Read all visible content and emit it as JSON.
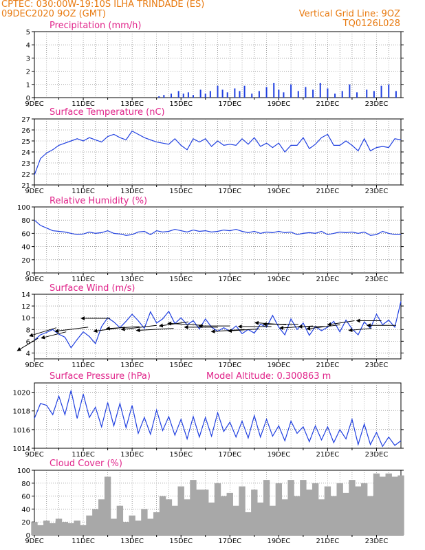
{
  "header": {
    "line1_left": "CPTEC:   030:00W-19:10S  ILHA TRINDADE (ES)",
    "line2_left": "09DEC2020 9OZ (GMT)",
    "line1_right": "Vertical Grid Line: 9OZ",
    "line2_right": "TQ0126L028"
  },
  "colors": {
    "accent_title": "#e0248a",
    "header": "#e87a10",
    "series": "#1f3fe0",
    "bars_gray": "#a8a8a8",
    "wind_arrows": "#000000"
  },
  "chart_data": [
    {
      "id": "precip",
      "type": "bar",
      "title": "Precipitation (mm/h)",
      "ylim": [
        0,
        5
      ],
      "yticks": [
        0,
        1,
        2,
        3,
        4,
        5
      ],
      "x_labels": [
        "9DEC",
        "11DEC",
        "13DEC",
        "15DEC",
        "17DEC",
        "19DEC",
        "21DEC",
        "23DEC"
      ],
      "x_range_days": [
        9,
        24
      ],
      "bars": [
        [
          14.1,
          0.1
        ],
        [
          14.3,
          0.2
        ],
        [
          14.6,
          0.3
        ],
        [
          14.9,
          0.5
        ],
        [
          15.1,
          0.3
        ],
        [
          15.3,
          0.4
        ],
        [
          15.5,
          0.2
        ],
        [
          15.8,
          0.6
        ],
        [
          16.0,
          0.3
        ],
        [
          16.2,
          0.5
        ],
        [
          16.5,
          0.9
        ],
        [
          16.7,
          0.6
        ],
        [
          16.9,
          0.4
        ],
        [
          17.2,
          0.7
        ],
        [
          17.4,
          0.5
        ],
        [
          17.6,
          0.9
        ],
        [
          17.9,
          0.3
        ],
        [
          18.2,
          0.5
        ],
        [
          18.5,
          0.8
        ],
        [
          18.8,
          1.1
        ],
        [
          19.0,
          0.6
        ],
        [
          19.2,
          0.4
        ],
        [
          19.5,
          1.0
        ],
        [
          19.8,
          0.5
        ],
        [
          20.1,
          0.8
        ],
        [
          20.4,
          0.6
        ],
        [
          20.7,
          1.1
        ],
        [
          21.0,
          0.7
        ],
        [
          21.3,
          0.3
        ],
        [
          21.6,
          0.5
        ],
        [
          21.9,
          1.0
        ],
        [
          22.2,
          0.4
        ],
        [
          22.6,
          0.6
        ],
        [
          22.9,
          0.5
        ],
        [
          23.2,
          0.9
        ],
        [
          23.5,
          1.0
        ],
        [
          23.8,
          0.5
        ]
      ]
    },
    {
      "id": "temp",
      "type": "line",
      "title": "Surface Temperature (nC)",
      "ylim": [
        21,
        27
      ],
      "yticks": [
        21,
        22,
        23,
        24,
        25,
        26,
        27
      ],
      "x_labels": [
        "9DEC",
        "11DEC",
        "13DEC",
        "15DEC",
        "17DEC",
        "19DEC",
        "21DEC",
        "23DEC"
      ],
      "x_range_days": [
        9,
        24
      ],
      "x": [
        9.0,
        9.25,
        9.5,
        9.75,
        10.0,
        10.25,
        10.5,
        10.75,
        11.0,
        11.25,
        11.5,
        11.75,
        12.0,
        12.25,
        12.5,
        12.75,
        13.0,
        13.25,
        13.5,
        13.75,
        14.0,
        14.25,
        14.5,
        14.75,
        15.0,
        15.25,
        15.5,
        15.75,
        16.0,
        16.25,
        16.5,
        16.75,
        17.0,
        17.25,
        17.5,
        17.75,
        18.0,
        18.25,
        18.5,
        18.75,
        19.0,
        19.25,
        19.5,
        19.75,
        20.0,
        20.25,
        20.5,
        20.75,
        21.0,
        21.25,
        21.5,
        21.75,
        22.0,
        22.25,
        22.5,
        22.75,
        23.0,
        23.25,
        23.5,
        23.75,
        24.0
      ],
      "y": [
        21.9,
        23.4,
        23.9,
        24.2,
        24.6,
        24.8,
        25.0,
        25.2,
        25.0,
        25.3,
        25.1,
        24.9,
        25.4,
        25.6,
        25.3,
        25.1,
        25.9,
        25.6,
        25.3,
        25.1,
        24.9,
        24.8,
        24.7,
        25.2,
        24.6,
        24.2,
        25.2,
        24.9,
        25.2,
        24.5,
        25.0,
        24.6,
        24.7,
        24.6,
        25.2,
        24.7,
        25.3,
        24.5,
        24.8,
        24.4,
        24.8,
        24.0,
        24.6,
        24.6,
        25.3,
        24.3,
        24.7,
        25.3,
        25.6,
        24.6,
        24.6,
        25.0,
        24.6,
        24.1,
        25.2,
        24.1,
        24.4,
        24.5,
        24.4,
        25.2,
        25.1
      ]
    },
    {
      "id": "rh",
      "type": "line",
      "title": "Relative Humidity (%)",
      "ylim": [
        0,
        100
      ],
      "yticks": [
        0,
        20,
        40,
        60,
        80,
        100
      ],
      "x_labels": [
        "9DEC",
        "11DEC",
        "13DEC",
        "15DEC",
        "17DEC",
        "19DEC",
        "21DEC",
        "23DEC"
      ],
      "x_range_days": [
        9,
        24
      ],
      "x": [
        9.0,
        9.25,
        9.5,
        9.75,
        10.0,
        10.25,
        10.5,
        10.75,
        11.0,
        11.25,
        11.5,
        11.75,
        12.0,
        12.25,
        12.5,
        12.75,
        13.0,
        13.25,
        13.5,
        13.75,
        14.0,
        14.25,
        14.5,
        14.75,
        15.0,
        15.25,
        15.5,
        15.75,
        16.0,
        16.25,
        16.5,
        16.75,
        17.0,
        17.25,
        17.5,
        17.75,
        18.0,
        18.25,
        18.5,
        18.75,
        19.0,
        19.25,
        19.5,
        19.75,
        20.0,
        20.25,
        20.5,
        20.75,
        21.0,
        21.25,
        21.5,
        21.75,
        22.0,
        22.25,
        22.5,
        22.75,
        23.0,
        23.25,
        23.5,
        23.75,
        24.0
      ],
      "y": [
        80,
        72,
        68,
        64,
        63,
        62,
        60,
        58,
        59,
        62,
        60,
        61,
        64,
        60,
        59,
        57,
        58,
        62,
        63,
        58,
        64,
        62,
        63,
        66,
        64,
        62,
        65,
        63,
        64,
        62,
        63,
        65,
        64,
        66,
        63,
        61,
        63,
        60,
        62,
        61,
        63,
        61,
        62,
        58,
        60,
        61,
        60,
        63,
        58,
        60,
        62,
        61,
        62,
        60,
        62,
        57,
        58,
        63,
        60,
        58,
        58
      ]
    },
    {
      "id": "wind",
      "type": "line",
      "title": "Surface Wind (m/s)",
      "ylim": [
        3,
        14
      ],
      "yticks": [
        4,
        6,
        8,
        10,
        12,
        14
      ],
      "x_labels": [
        "9DEC",
        "11DEC",
        "13DEC",
        "15DEC",
        "17DEC",
        "19DEC",
        "21DEC",
        "23DEC"
      ],
      "x_range_days": [
        9,
        24
      ],
      "x": [
        9.0,
        9.25,
        9.5,
        9.75,
        10.0,
        10.25,
        10.5,
        10.75,
        11.0,
        11.25,
        11.5,
        11.75,
        12.0,
        12.25,
        12.5,
        12.75,
        13.0,
        13.25,
        13.5,
        13.75,
        14.0,
        14.25,
        14.5,
        14.75,
        15.0,
        15.25,
        15.5,
        15.75,
        16.0,
        16.25,
        16.5,
        16.75,
        17.0,
        17.25,
        17.5,
        17.75,
        18.0,
        18.25,
        18.5,
        18.75,
        19.0,
        19.25,
        19.5,
        19.75,
        20.0,
        20.25,
        20.5,
        20.75,
        21.0,
        21.25,
        21.5,
        21.75,
        22.0,
        22.25,
        22.5,
        22.75,
        23.0,
        23.25,
        23.5,
        23.75,
        24.0
      ],
      "y": [
        6.2,
        7.1,
        7.5,
        8.0,
        7.2,
        6.7,
        4.9,
        6.3,
        7.6,
        6.8,
        5.6,
        8.5,
        10.0,
        9.3,
        8.3,
        9.4,
        10.6,
        9.5,
        8.2,
        11.0,
        9.1,
        9.8,
        11.1,
        9.0,
        10.0,
        8.8,
        9.5,
        8.1,
        9.8,
        8.4,
        7.7,
        8.3,
        7.7,
        8.6,
        7.3,
        8.0,
        7.4,
        8.9,
        8.4,
        10.4,
        8.4,
        7.1,
        9.8,
        8.0,
        9.1,
        7.0,
        8.5,
        7.8,
        8.4,
        9.4,
        7.6,
        9.6,
        8.1,
        7.1,
        9.3,
        8.2,
        10.6,
        8.8,
        9.6,
        8.4,
        12.8
      ],
      "vectors": [
        [
          9.15,
          6.5,
          -1.0,
          -0.6
        ],
        [
          9.9,
          8.3,
          -1.3,
          -0.4
        ],
        [
          10.3,
          7.6,
          -1.2,
          -0.3
        ],
        [
          11.2,
          8.4,
          -1.6,
          -0.2
        ],
        [
          12.1,
          9.9,
          -1.4,
          0.0
        ],
        [
          12.7,
          8.4,
          -1.5,
          -0.2
        ],
        [
          13.3,
          8.5,
          -1.6,
          -0.1
        ],
        [
          14.0,
          8.7,
          -1.7,
          -0.2
        ],
        [
          14.7,
          8.2,
          -1.8,
          -0.1
        ],
        [
          15.3,
          9.3,
          -1.4,
          -0.2
        ],
        [
          15.9,
          8.7,
          -1.7,
          0.1
        ],
        [
          16.5,
          8.4,
          -1.6,
          0.0
        ],
        [
          17.0,
          8.6,
          -1.5,
          0.0
        ],
        [
          17.6,
          8.0,
          -1.6,
          -0.1
        ],
        [
          18.2,
          8.1,
          -1.5,
          -0.1
        ],
        [
          18.7,
          8.5,
          -1.6,
          0.0
        ],
        [
          19.3,
          8.8,
          -1.5,
          0.1
        ],
        [
          19.8,
          8.9,
          -1.7,
          0.0
        ],
        [
          20.4,
          8.6,
          -1.6,
          -0.1
        ],
        [
          21.0,
          8.5,
          -1.4,
          0.0
        ],
        [
          21.5,
          8.8,
          -1.6,
          -0.2
        ],
        [
          22.1,
          9.5,
          -1.3,
          -0.2
        ],
        [
          22.8,
          8.2,
          -1.1,
          -0.1
        ],
        [
          23.2,
          9.5,
          -1.2,
          0.0
        ],
        [
          23.8,
          8.7,
          -1.4,
          0.0
        ]
      ]
    },
    {
      "id": "pressure",
      "type": "line",
      "title": "Surface Pressure (hPa)",
      "annotation": "Model Altitude: 0.300863 m",
      "ylim": [
        1014,
        1021
      ],
      "yticks": [
        1014,
        1016,
        1018,
        1020
      ],
      "x_labels": [
        "9DEC",
        "11DEC",
        "13DEC",
        "15DEC",
        "17DEC",
        "19DEC",
        "21DEC",
        "23DEC"
      ],
      "x_range_days": [
        9,
        24
      ],
      "x": [
        9.0,
        9.25,
        9.5,
        9.75,
        10.0,
        10.25,
        10.5,
        10.75,
        11.0,
        11.25,
        11.5,
        11.75,
        12.0,
        12.25,
        12.5,
        12.75,
        13.0,
        13.25,
        13.5,
        13.75,
        14.0,
        14.25,
        14.5,
        14.75,
        15.0,
        15.25,
        15.5,
        15.75,
        16.0,
        16.25,
        16.5,
        16.75,
        17.0,
        17.25,
        17.5,
        17.75,
        18.0,
        18.25,
        18.5,
        18.75,
        19.0,
        19.25,
        19.5,
        19.75,
        20.0,
        20.25,
        20.5,
        20.75,
        21.0,
        21.25,
        21.5,
        21.75,
        22.0,
        22.25,
        22.5,
        22.75,
        23.0,
        23.25,
        23.5,
        23.75,
        24.0
      ],
      "y": [
        1017.2,
        1018.8,
        1018.6,
        1017.6,
        1019.6,
        1017.6,
        1020.2,
        1017.2,
        1019.8,
        1017.3,
        1018.4,
        1016.3,
        1018.9,
        1016.4,
        1018.8,
        1016.2,
        1018.6,
        1015.6,
        1017.3,
        1015.5,
        1018.1,
        1015.9,
        1017.4,
        1015.4,
        1017.1,
        1015.0,
        1017.4,
        1015.2,
        1017.3,
        1015.3,
        1017.8,
        1015.8,
        1016.8,
        1015.2,
        1016.9,
        1015.1,
        1017.5,
        1015.2,
        1017.1,
        1015.3,
        1016.4,
        1014.8,
        1016.9,
        1015.6,
        1016.3,
        1014.7,
        1016.4,
        1014.9,
        1016.3,
        1014.6,
        1016.0,
        1015.0,
        1017.1,
        1014.4,
        1016.6,
        1014.4,
        1015.7,
        1014.2,
        1015.2,
        1014.3,
        1014.8
      ]
    },
    {
      "id": "cloud",
      "type": "bar",
      "title": "Cloud Cover (%)",
      "ylim": [
        0,
        100
      ],
      "yticks": [
        0,
        20,
        40,
        60,
        80,
        100
      ],
      "x_labels": [
        "9DEC",
        "11DEC",
        "13DEC",
        "15DEC",
        "17DEC",
        "19DEC",
        "21DEC",
        "23DEC"
      ],
      "x_range_days": [
        9,
        24
      ],
      "x": [
        9.0,
        9.25,
        9.5,
        9.75,
        10.0,
        10.25,
        10.5,
        10.75,
        11.0,
        11.25,
        11.5,
        11.75,
        12.0,
        12.25,
        12.5,
        12.75,
        13.0,
        13.25,
        13.5,
        13.75,
        14.0,
        14.25,
        14.5,
        14.75,
        15.0,
        15.25,
        15.5,
        15.75,
        16.0,
        16.25,
        16.5,
        16.75,
        17.0,
        17.25,
        17.5,
        17.75,
        18.0,
        18.25,
        18.5,
        18.75,
        19.0,
        19.25,
        19.5,
        19.75,
        20.0,
        20.25,
        20.5,
        20.75,
        21.0,
        21.25,
        21.5,
        21.75,
        22.0,
        22.25,
        22.5,
        22.75,
        23.0,
        23.25,
        23.5,
        23.75,
        24.0
      ],
      "y": [
        20,
        15,
        22,
        18,
        25,
        20,
        18,
        22,
        15,
        30,
        40,
        55,
        90,
        25,
        45,
        20,
        30,
        22,
        40,
        25,
        35,
        60,
        55,
        45,
        75,
        55,
        85,
        70,
        70,
        50,
        80,
        60,
        65,
        45,
        75,
        35,
        70,
        50,
        85,
        45,
        80,
        55,
        85,
        60,
        85,
        70,
        80,
        55,
        75,
        60,
        80,
        65,
        85,
        75,
        80,
        60,
        95,
        90,
        95,
        90,
        92
      ]
    }
  ]
}
